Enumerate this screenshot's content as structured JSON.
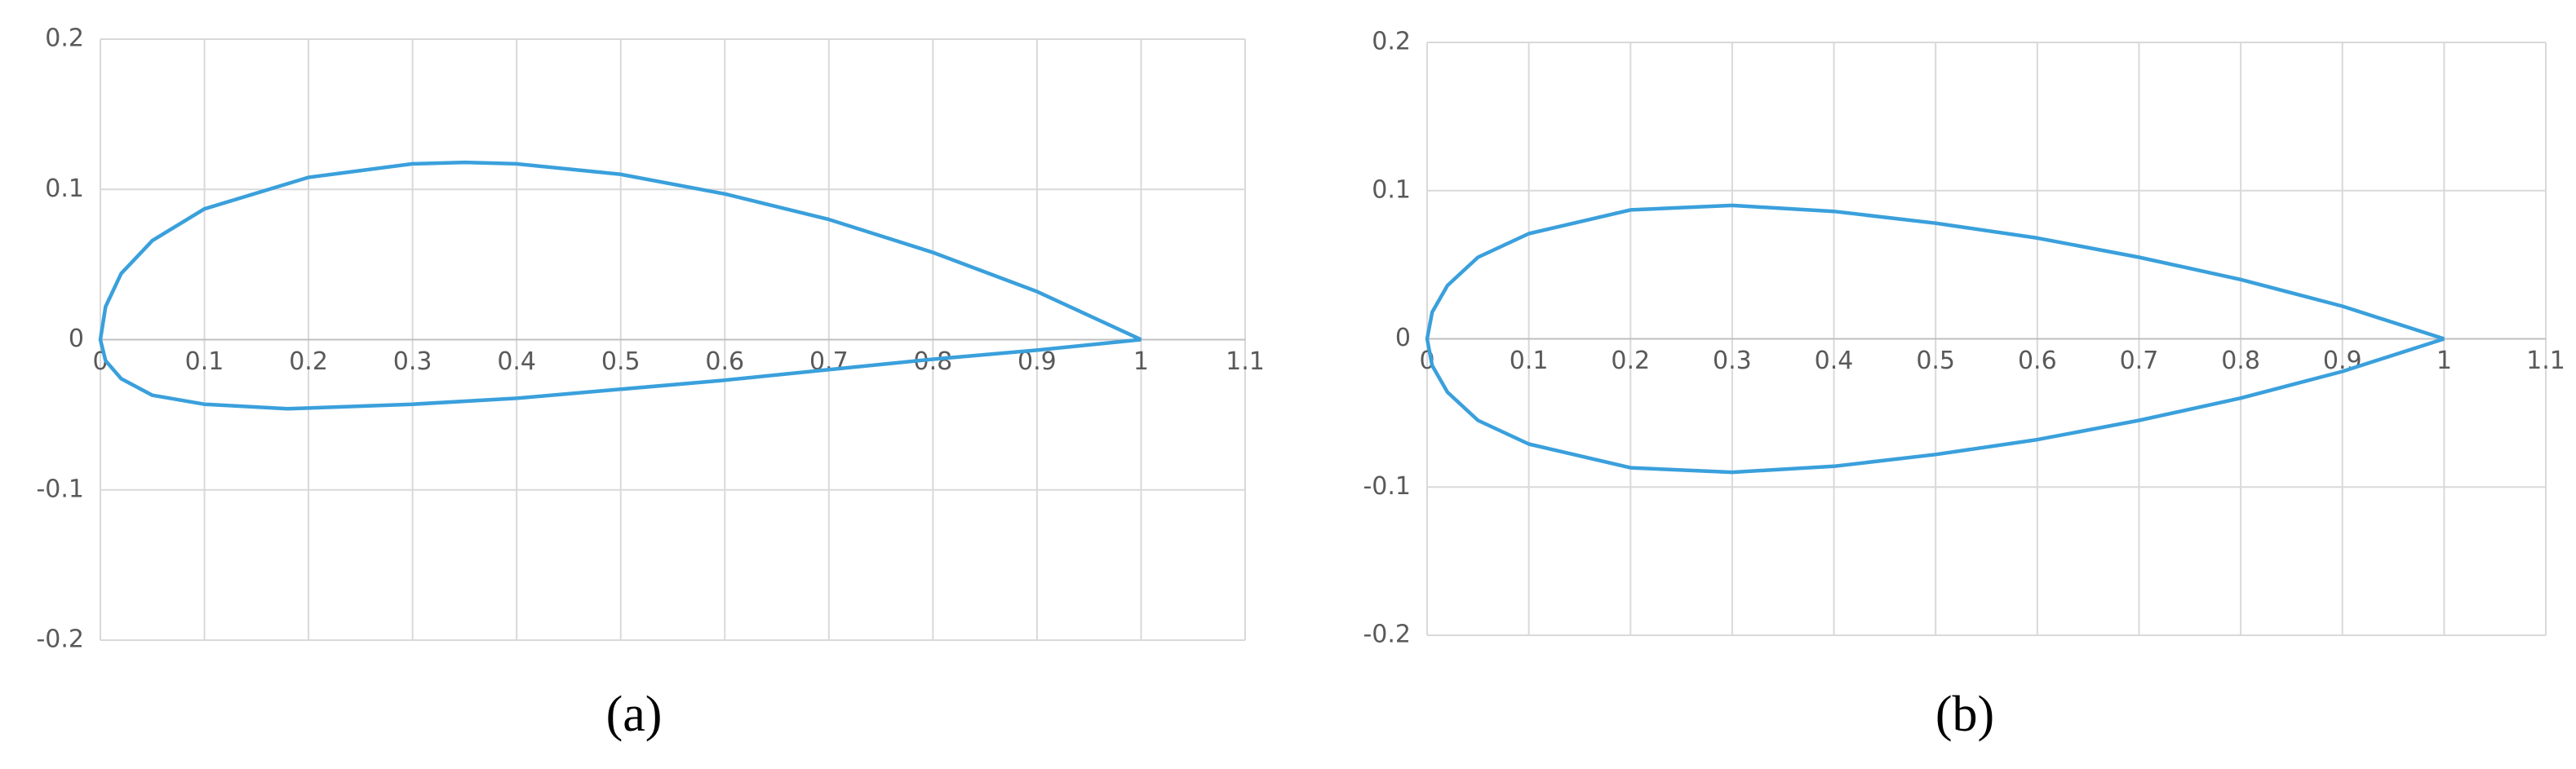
{
  "chart_data": [
    {
      "type": "line",
      "label": "(a)",
      "color": "#3aa0dc",
      "grid": true,
      "x": [
        1,
        0.9,
        0.8,
        0.7,
        0.6,
        0.5,
        0.4,
        0.35,
        0.3,
        0.2,
        0.1,
        0.05,
        0.02,
        0.005,
        0,
        0.005,
        0.02,
        0.05,
        0.1,
        0.18,
        0.3,
        0.4,
        0.5,
        0.6,
        0.7,
        0.8,
        0.9,
        1
      ],
      "y": [
        0,
        0.032,
        0.058,
        0.08,
        0.097,
        0.11,
        0.117,
        0.118,
        0.117,
        0.108,
        0.087,
        0.066,
        0.044,
        0.022,
        0,
        -0.014,
        -0.026,
        -0.037,
        -0.043,
        -0.046,
        -0.043,
        -0.039,
        -0.033,
        -0.027,
        -0.02,
        -0.013,
        -0.007,
        0
      ],
      "xlim": [
        0,
        1.1
      ],
      "xticks": [
        0,
        0.1,
        0.2,
        0.3,
        0.4,
        0.5,
        0.6,
        0.7,
        0.8,
        0.9,
        1,
        1.1
      ],
      "ylim": [
        -0.2,
        0.2
      ],
      "yticks": [
        -0.2,
        -0.1,
        0,
        0.1,
        0.2
      ]
    },
    {
      "type": "line",
      "label": "(b)",
      "color": "#3aa0dc",
      "grid": true,
      "x": [
        1,
        0.9,
        0.8,
        0.7,
        0.6,
        0.5,
        0.4,
        0.3,
        0.2,
        0.1,
        0.05,
        0.02,
        0.005,
        0,
        0.005,
        0.02,
        0.05,
        0.1,
        0.2,
        0.3,
        0.4,
        0.5,
        0.6,
        0.7,
        0.8,
        0.9,
        1
      ],
      "y": [
        0,
        0.022,
        0.04,
        0.055,
        0.068,
        0.078,
        0.086,
        0.09,
        0.087,
        0.071,
        0.055,
        0.036,
        0.018,
        0,
        -0.018,
        -0.036,
        -0.055,
        -0.071,
        -0.087,
        -0.09,
        -0.086,
        -0.078,
        -0.068,
        -0.055,
        -0.04,
        -0.022,
        0
      ],
      "xlim": [
        0,
        1.1
      ],
      "xticks": [
        0,
        0.1,
        0.2,
        0.3,
        0.4,
        0.5,
        0.6,
        0.7,
        0.8,
        0.9,
        1,
        1.1
      ],
      "ylim": [
        -0.2,
        0.2
      ],
      "yticks": [
        -0.2,
        -0.1,
        0,
        0.1,
        0.2
      ]
    }
  ]
}
